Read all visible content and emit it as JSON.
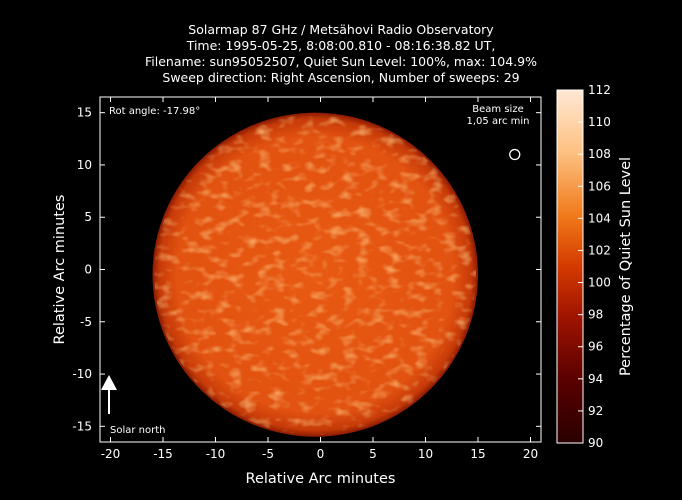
{
  "chart_data": {
    "type": "heatmap",
    "title_lines": [
      "Solarmap 87 GHz / Metsähovi Radio Observatory",
      "Time: 1995-05-25,  8:08:00.810 - 08:16:38.82 UT,",
      "Filename: sun95052507, Quiet Sun Level: 100%, max: 104.9%",
      "Sweep direction: Right Ascension, Number of sweeps: 29"
    ],
    "xlabel": "Relative Arc minutes",
    "ylabel": "Relative Arc minutes",
    "xlim": [
      -21,
      21
    ],
    "ylim": [
      -16.5,
      16.5
    ],
    "xticks": [
      -20,
      -15,
      -10,
      -5,
      0,
      5,
      10,
      15,
      20
    ],
    "yticks": [
      -15,
      -10,
      -5,
      0,
      5,
      10,
      15
    ],
    "colorbar": {
      "label": "Percentage of Quiet Sun Level",
      "range": [
        90,
        112
      ],
      "ticks": [
        90,
        92,
        94,
        96,
        98,
        100,
        102,
        104,
        106,
        108,
        110,
        112
      ]
    },
    "disk": {
      "center": [
        -0.5,
        -0.5
      ],
      "radius_arcmin": 15.5,
      "typical_level_pct": 102
    },
    "annotations": {
      "rot_angle": "Rot angle: -17.98°",
      "beam_line1": "Beam size",
      "beam_line2": "1,05 arc min",
      "solar_north": "Solar north"
    },
    "beam_center": [
      18.5,
      11
    ]
  }
}
